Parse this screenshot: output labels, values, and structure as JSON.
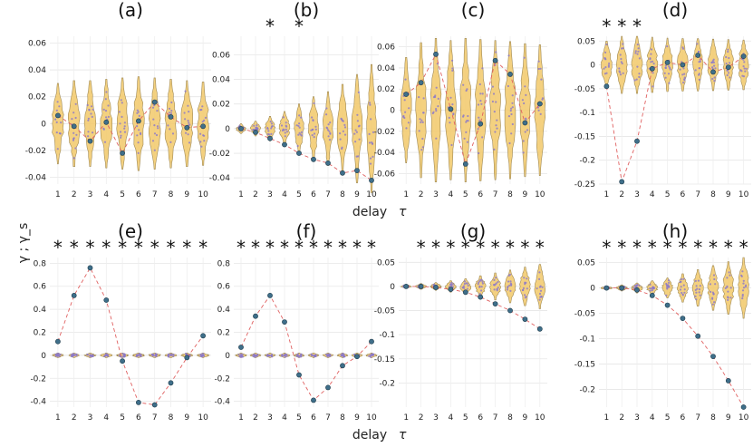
{
  "figure": {
    "ylabel": "γ ; γ_s",
    "xlabel_top": "delay",
    "xlabel_bottom": "delay",
    "tau": "τ"
  },
  "chart_data": [
    {
      "type": "violin",
      "title": "(a)",
      "x": [
        1,
        2,
        3,
        4,
        5,
        6,
        7,
        8,
        9,
        10
      ],
      "ylim": [
        -0.045,
        0.065
      ],
      "yticks": [
        -0.04,
        -0.02,
        0,
        0.02,
        0.04,
        0.06
      ],
      "yticklabels": [
        "-0.04",
        "-0.02",
        "0",
        "0.02",
        "0.04",
        "0.06"
      ],
      "gamma": [
        0.006,
        -0.002,
        -0.013,
        0.001,
        -0.022,
        0.002,
        0.016,
        0.005,
        -0.003,
        -0.002
      ],
      "spread": [
        0.03,
        0.032,
        0.032,
        0.033,
        0.034,
        0.035,
        0.034,
        0.033,
        0.032,
        0.031
      ],
      "significant": []
    },
    {
      "type": "violin",
      "title": "(b)",
      "x": [
        1,
        2,
        3,
        4,
        5,
        6,
        7,
        8,
        9,
        10
      ],
      "ylim": [
        -0.045,
        0.075
      ],
      "yticks": [
        -0.04,
        -0.02,
        0,
        0.02,
        0.04,
        0.06
      ],
      "yticklabels": [
        "-0.04",
        "-0.02",
        "0",
        "0.02",
        "0.04",
        "0.06"
      ],
      "gamma": [
        0,
        -0.003,
        -0.008,
        -0.013,
        -0.02,
        -0.025,
        -0.028,
        -0.036,
        -0.034,
        -0.042
      ],
      "spread": [
        0.004,
        0.006,
        0.01,
        0.014,
        0.02,
        0.026,
        0.03,
        0.036,
        0.044,
        0.052
      ],
      "significant": [
        3,
        5
      ]
    },
    {
      "type": "violin",
      "title": "(c)",
      "x": [
        1,
        2,
        3,
        4,
        5,
        6,
        7,
        8,
        9,
        10
      ],
      "ylim": [
        -0.07,
        0.07
      ],
      "yticks": [
        -0.06,
        -0.04,
        -0.02,
        0,
        0.02,
        0.04,
        0.06
      ],
      "yticklabels": [
        "-0.06",
        "-0.04",
        "-0.02",
        "0",
        "0.02",
        "0.04",
        "0.06"
      ],
      "gamma": [
        0.015,
        0.026,
        0.053,
        0.001,
        -0.051,
        -0.013,
        0.047,
        0.034,
        -0.012,
        0.006
      ],
      "spread": [
        0.05,
        0.064,
        0.068,
        0.066,
        0.068,
        0.067,
        0.066,
        0.065,
        0.063,
        0.062
      ],
      "significant": []
    },
    {
      "type": "violin",
      "title": "(d)",
      "x": [
        1,
        2,
        3,
        4,
        5,
        6,
        7,
        8,
        9,
        10
      ],
      "ylim": [
        -0.25,
        0.06
      ],
      "yticks": [
        -0.25,
        -0.2,
        -0.15,
        -0.1,
        -0.05,
        0,
        0.05
      ],
      "yticklabels": [
        "-0.25",
        "-0.2",
        "-0.15",
        "-0.1",
        "-0.05",
        "0",
        "0.05"
      ],
      "gamma": [
        -0.045,
        -0.245,
        -0.16,
        -0.008,
        0.005,
        0,
        0.02,
        -0.015,
        -0.005,
        0.018
      ],
      "spread": [
        0.05,
        0.06,
        0.06,
        0.058,
        0.056,
        0.055,
        0.055,
        0.054,
        0.053,
        0.052
      ],
      "significant": [
        1,
        2,
        3
      ]
    },
    {
      "type": "violin",
      "title": "(e)",
      "x": [
        1,
        2,
        3,
        4,
        5,
        6,
        7,
        8,
        9,
        10
      ],
      "ylim": [
        -0.45,
        0.85
      ],
      "yticks": [
        -0.4,
        -0.2,
        0,
        0.2,
        0.4,
        0.6,
        0.8
      ],
      "yticklabels": [
        "-0.4",
        "-0.2",
        "0",
        "0.2",
        "0.4",
        "0.6",
        "0.8"
      ],
      "gamma": [
        0.12,
        0.52,
        0.76,
        0.48,
        -0.05,
        -0.41,
        -0.43,
        -0.24,
        -0.02,
        0.17
      ],
      "spread": [
        0.02,
        0.02,
        0.02,
        0.02,
        0.02,
        0.02,
        0.02,
        0.02,
        0.02,
        0.02
      ],
      "significant": [
        1,
        2,
        3,
        4,
        5,
        6,
        7,
        8,
        9,
        10
      ]
    },
    {
      "type": "violin",
      "title": "(f)",
      "x": [
        1,
        2,
        3,
        4,
        5,
        6,
        7,
        8,
        9,
        10
      ],
      "ylim": [
        -0.45,
        0.85
      ],
      "yticks": [
        -0.4,
        -0.2,
        0,
        0.2,
        0.4,
        0.6,
        0.8
      ],
      "yticklabels": [
        "-0.4",
        "-0.2",
        "0",
        "0.2",
        "0.4",
        "0.6",
        "0.8"
      ],
      "gamma": [
        0.07,
        0.34,
        0.52,
        0.29,
        -0.17,
        -0.39,
        -0.28,
        -0.09,
        -0.01,
        0.12
      ],
      "spread": [
        0.02,
        0.02,
        0.02,
        0.02,
        0.02,
        0.02,
        0.02,
        0.02,
        0.02,
        0.02
      ],
      "significant": [
        1,
        2,
        3,
        4,
        5,
        6,
        7,
        8,
        9,
        10
      ]
    },
    {
      "type": "violin",
      "title": "(g)",
      "x": [
        1,
        2,
        3,
        4,
        5,
        6,
        7,
        8,
        9,
        10
      ],
      "ylim": [
        -0.25,
        0.06
      ],
      "yticks": [
        -0.2,
        -0.15,
        -0.1,
        -0.05,
        0,
        0.05
      ],
      "yticklabels": [
        "-0.2",
        "-0.15",
        "-0.1",
        "-0.05",
        "0",
        "0.05"
      ],
      "gamma": [
        0,
        0,
        -0.002,
        -0.006,
        -0.012,
        -0.022,
        -0.036,
        -0.05,
        -0.068,
        -0.088
      ],
      "spread": [
        0.004,
        0.006,
        0.008,
        0.012,
        0.016,
        0.022,
        0.028,
        0.034,
        0.04,
        0.046
      ],
      "significant": [
        2,
        3,
        4,
        5,
        6,
        7,
        8,
        9,
        10
      ]
    },
    {
      "type": "violin",
      "title": "(h)",
      "x": [
        1,
        2,
        3,
        4,
        5,
        6,
        7,
        8,
        9,
        10
      ],
      "ylim": [
        -0.235,
        0.06
      ],
      "yticks": [
        -0.2,
        -0.15,
        -0.1,
        -0.05,
        0,
        0.05
      ],
      "yticklabels": [
        "-0.2",
        "-0.15",
        "-0.1",
        "-0.05",
        "0",
        "0.05"
      ],
      "gamma": [
        0,
        0,
        -0.004,
        -0.015,
        -0.034,
        -0.06,
        -0.095,
        -0.135,
        -0.183,
        -0.235
      ],
      "spread": [
        0.004,
        0.006,
        0.01,
        0.014,
        0.02,
        0.028,
        0.036,
        0.044,
        0.052,
        0.06
      ],
      "significant": [
        1,
        2,
        3,
        4,
        5,
        6,
        7,
        8,
        9,
        10
      ]
    }
  ]
}
